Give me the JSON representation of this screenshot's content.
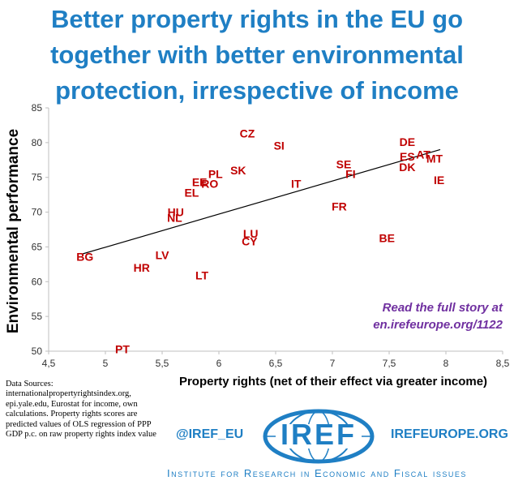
{
  "title_lines": [
    "Better property rights in the EU go",
    "together with better environmental",
    "protection, irrespective of income"
  ],
  "story": {
    "line1": "Read the full story at",
    "line2": "en.irefeurope.org/1122"
  },
  "sources": "Data Sources: internationalpropertyrightsindex.org, epi.yale.edu, Eurostat for income, own calculations. Property rights scores are predicted values of OLS regression of PPP GDP p.c. on raw property rights index value",
  "footer": {
    "handle": "@IREF_EU",
    "logo_text": "IREF",
    "site": "IREFEUROPE.ORG",
    "institute": "Institute for Research in Economic and Fiscal issues"
  },
  "colors": {
    "title": "#1f7fc4",
    "points": "#c00000",
    "story": "#7030a0",
    "axis": "#bfbfbf"
  },
  "chart_data": {
    "type": "scatter",
    "title": "Better property rights in the EU go together with better environmental protection, irrespective of income",
    "xlabel": "Property rights (net of their effect via greater income)",
    "ylabel": "Environmental performance",
    "xlim": [
      4.5,
      8.5
    ],
    "ylim": [
      50,
      85
    ],
    "xticks": [
      "4,5",
      "5",
      "5,5",
      "6",
      "6,5",
      "7",
      "7,5",
      "8",
      "8,5"
    ],
    "yticks": [
      "50",
      "55",
      "60",
      "65",
      "70",
      "75",
      "80",
      "85"
    ],
    "grid": false,
    "points": [
      {
        "label": "CZ",
        "x": 6.25,
        "y": 81.3
      },
      {
        "label": "SI",
        "x": 6.53,
        "y": 79.6
      },
      {
        "label": "DE",
        "x": 7.66,
        "y": 80.1
      },
      {
        "label": "ES",
        "x": 7.66,
        "y": 78.0
      },
      {
        "label": "AT",
        "x": 7.8,
        "y": 78.3
      },
      {
        "label": "MT",
        "x": 7.9,
        "y": 77.7
      },
      {
        "label": "DK",
        "x": 7.66,
        "y": 76.5
      },
      {
        "label": "SE",
        "x": 7.1,
        "y": 76.9
      },
      {
        "label": "FI",
        "x": 7.16,
        "y": 75.5
      },
      {
        "label": "IE",
        "x": 7.94,
        "y": 74.6
      },
      {
        "label": "SK",
        "x": 6.17,
        "y": 76.0
      },
      {
        "label": "PL",
        "x": 5.97,
        "y": 75.5
      },
      {
        "label": "EE",
        "x": 5.83,
        "y": 74.3
      },
      {
        "label": "RO",
        "x": 5.92,
        "y": 74.1
      },
      {
        "label": "EL",
        "x": 5.76,
        "y": 72.8
      },
      {
        "label": "IT",
        "x": 6.68,
        "y": 74.1
      },
      {
        "label": "FR",
        "x": 7.06,
        "y": 70.8
      },
      {
        "label": "HU",
        "x": 5.62,
        "y": 70.0
      },
      {
        "label": "NL",
        "x": 5.61,
        "y": 69.2
      },
      {
        "label": "LU",
        "x": 6.28,
        "y": 66.9
      },
      {
        "label": "CY",
        "x": 6.27,
        "y": 65.8
      },
      {
        "label": "BE",
        "x": 7.48,
        "y": 66.3
      },
      {
        "label": "BG",
        "x": 4.82,
        "y": 63.6
      },
      {
        "label": "LV",
        "x": 5.5,
        "y": 63.8
      },
      {
        "label": "HR",
        "x": 5.32,
        "y": 62.0
      },
      {
        "label": "LT",
        "x": 5.85,
        "y": 60.9
      },
      {
        "label": "PT",
        "x": 5.15,
        "y": 50.3
      }
    ],
    "trendline": {
      "x": [
        4.8,
        7.95
      ],
      "y": [
        64.0,
        79.0
      ]
    }
  }
}
